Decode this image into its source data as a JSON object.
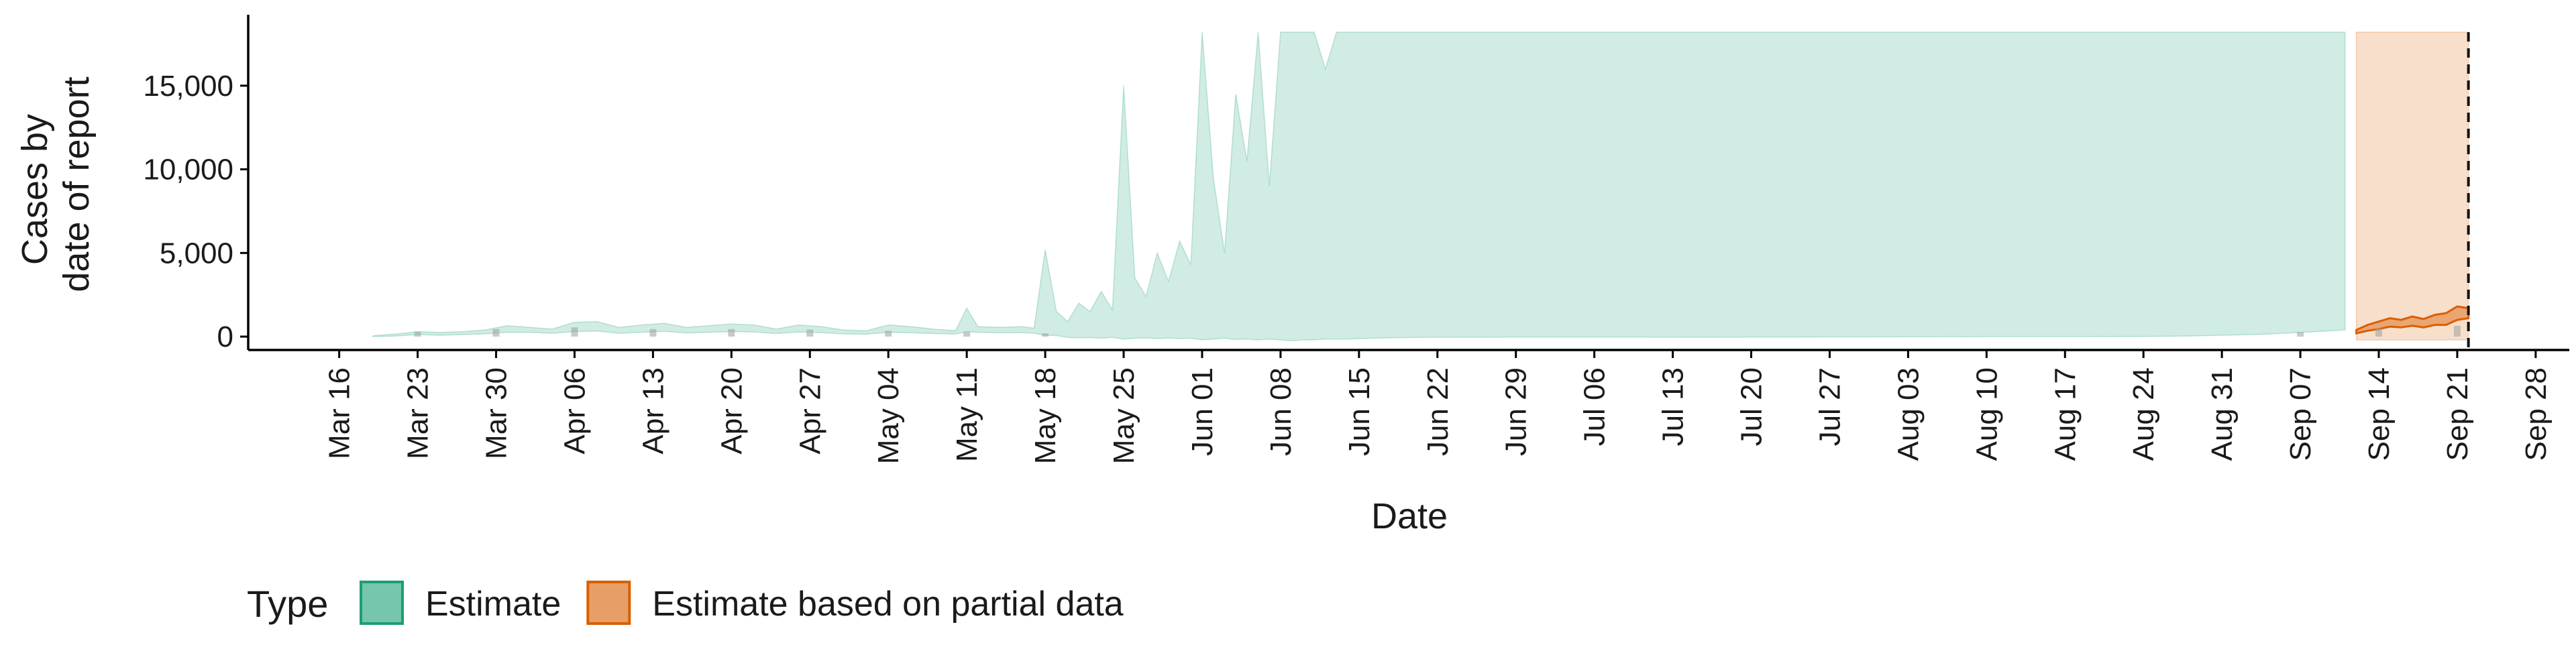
{
  "chart_data": {
    "type": "area",
    "title": "",
    "xlabel": "Date",
    "ylabel_lines": [
      "Cases by",
      "date of report"
    ],
    "ylim": [
      -800,
      19000
    ],
    "ylim_clip_top": 18200,
    "yticks": [
      0,
      5000,
      10000,
      15000
    ],
    "ytick_labels": [
      "0",
      "5,000",
      "10,000",
      "15,000"
    ],
    "x_range": [
      "2020-03-08",
      "2020-10-01"
    ],
    "xtick_dates": [
      "2020-03-16",
      "2020-03-23",
      "2020-03-30",
      "2020-04-06",
      "2020-04-13",
      "2020-04-20",
      "2020-04-27",
      "2020-05-04",
      "2020-05-11",
      "2020-05-18",
      "2020-05-25",
      "2020-06-01",
      "2020-06-08",
      "2020-06-15",
      "2020-06-22",
      "2020-06-29",
      "2020-07-06",
      "2020-07-13",
      "2020-07-20",
      "2020-07-27",
      "2020-08-03",
      "2020-08-10",
      "2020-08-17",
      "2020-08-24",
      "2020-08-31",
      "2020-09-07",
      "2020-09-14",
      "2020-09-21",
      "2020-09-28"
    ],
    "xtick_labels": [
      "Mar 16",
      "Mar 23",
      "Mar 30",
      "Apr 06",
      "Apr 13",
      "Apr 20",
      "Apr 27",
      "May 04",
      "May 11",
      "May 18",
      "May 25",
      "Jun 01",
      "Jun 08",
      "Jun 15",
      "Jun 22",
      "Jun 29",
      "Jul 06",
      "Jul 13",
      "Jul 20",
      "Jul 27",
      "Aug 03",
      "Aug 10",
      "Aug 17",
      "Aug 24",
      "Aug 31",
      "Sep 07",
      "Sep 14",
      "Sep 21",
      "Sep 28"
    ],
    "report_date": "2020-09-22",
    "series": [
      {
        "name": "Estimate",
        "type_key": "estimate",
        "color": "#1b9e77",
        "dates": [
          "2020-03-19",
          "2020-03-21",
          "2020-03-23",
          "2020-03-25",
          "2020-03-27",
          "2020-03-29",
          "2020-03-31",
          "2020-04-02",
          "2020-04-04",
          "2020-04-06",
          "2020-04-08",
          "2020-04-10",
          "2020-04-12",
          "2020-04-14",
          "2020-04-16",
          "2020-04-18",
          "2020-04-20",
          "2020-04-22",
          "2020-04-24",
          "2020-04-26",
          "2020-04-28",
          "2020-04-30",
          "2020-05-02",
          "2020-05-04",
          "2020-05-06",
          "2020-05-08",
          "2020-05-10",
          "2020-05-11",
          "2020-05-12",
          "2020-05-14",
          "2020-05-16",
          "2020-05-17",
          "2020-05-18",
          "2020-05-19",
          "2020-05-20",
          "2020-05-21",
          "2020-05-22",
          "2020-05-23",
          "2020-05-24",
          "2020-05-25",
          "2020-05-26",
          "2020-05-27",
          "2020-05-28",
          "2020-05-29",
          "2020-05-30",
          "2020-05-31",
          "2020-06-01",
          "2020-06-02",
          "2020-06-03",
          "2020-06-04",
          "2020-06-05",
          "2020-06-06",
          "2020-06-07",
          "2020-06-08",
          "2020-06-09",
          "2020-06-10",
          "2020-06-11",
          "2020-06-12",
          "2020-06-13",
          "2020-06-14",
          "2020-06-16",
          "2020-06-20",
          "2020-06-25",
          "2020-07-01",
          "2020-07-08",
          "2020-07-15",
          "2020-07-22",
          "2020-07-29",
          "2020-08-05",
          "2020-08-12",
          "2020-08-19",
          "2020-08-24",
          "2020-08-28",
          "2020-08-31",
          "2020-09-03",
          "2020-09-05",
          "2020-09-07",
          "2020-09-09",
          "2020-09-11"
        ],
        "upper": [
          50,
          150,
          300,
          250,
          300,
          400,
          650,
          550,
          450,
          850,
          900,
          550,
          700,
          800,
          550,
          650,
          750,
          700,
          450,
          700,
          600,
          400,
          350,
          700,
          600,
          450,
          350,
          1700,
          600,
          550,
          600,
          500,
          5200,
          1500,
          900,
          2000,
          1500,
          2700,
          1600,
          15000,
          3500,
          2400,
          5000,
          3300,
          5700,
          4300,
          18200,
          9500,
          5000,
          14500,
          10500,
          18200,
          9000,
          18200,
          18200,
          18200,
          18200,
          16000,
          18200,
          18200,
          18200,
          18200,
          18200,
          18200,
          18200,
          18200,
          18200,
          18200,
          18200,
          18200,
          18200,
          18200,
          18200,
          18200,
          18200,
          18200,
          18200,
          18200,
          18200
        ],
        "lower": [
          0,
          30,
          120,
          80,
          120,
          160,
          260,
          250,
          200,
          300,
          330,
          200,
          260,
          310,
          220,
          260,
          300,
          280,
          180,
          270,
          240,
          160,
          140,
          260,
          230,
          180,
          150,
          300,
          250,
          230,
          240,
          200,
          80,
          60,
          -50,
          -80,
          -60,
          -100,
          -50,
          -150,
          -100,
          -80,
          -120,
          -90,
          -120,
          -100,
          -200,
          -150,
          -100,
          -180,
          -150,
          -200,
          -150,
          -200,
          -250,
          -200,
          -200,
          -150,
          -150,
          -150,
          -100,
          -50,
          -40,
          -30,
          -30,
          -40,
          -30,
          -20,
          -10,
          0,
          0,
          10,
          30,
          80,
          120,
          180,
          250,
          320,
          400
        ]
      },
      {
        "name": "Estimate based on partial data",
        "type_key": "partial",
        "color": "#d95f02",
        "dates": [
          "2020-09-12",
          "2020-09-13",
          "2020-09-14",
          "2020-09-15",
          "2020-09-16",
          "2020-09-17",
          "2020-09-18",
          "2020-09-19",
          "2020-09-20",
          "2020-09-21",
          "2020-09-22"
        ],
        "upper": [
          18200,
          18200,
          18200,
          18200,
          18200,
          18200,
          18200,
          18200,
          18200,
          18200,
          18200
        ],
        "lower": [
          -200,
          -200,
          -200,
          -200,
          -200,
          -200,
          -200,
          -200,
          -200,
          -200,
          -200
        ],
        "mid_upper": [
          400,
          700,
          900,
          1100,
          1000,
          1200,
          1050,
          1300,
          1400,
          1800,
          1700
        ],
        "mid_lower": [
          200,
          350,
          450,
          600,
          550,
          650,
          550,
          700,
          700,
          1000,
          1100
        ]
      }
    ],
    "reported_cases": [
      {
        "date": "2020-03-23",
        "value": 300
      },
      {
        "date": "2020-03-30",
        "value": 450
      },
      {
        "date": "2020-04-06",
        "value": 550
      },
      {
        "date": "2020-04-13",
        "value": 450
      },
      {
        "date": "2020-04-20",
        "value": 450
      },
      {
        "date": "2020-04-27",
        "value": 420
      },
      {
        "date": "2020-05-04",
        "value": 350
      },
      {
        "date": "2020-05-11",
        "value": 300
      },
      {
        "date": "2020-05-18",
        "value": 200
      },
      {
        "date": "2020-09-07",
        "value": 280
      },
      {
        "date": "2020-09-14",
        "value": 500
      },
      {
        "date": "2020-09-21",
        "value": 650
      }
    ],
    "legend": {
      "title": "Type",
      "position": "bottom-left",
      "entries": [
        {
          "label": "Estimate",
          "color": "#1b9e77"
        },
        {
          "label": "Estimate based on partial data",
          "color": "#d95f02"
        }
      ]
    },
    "grid": false
  }
}
